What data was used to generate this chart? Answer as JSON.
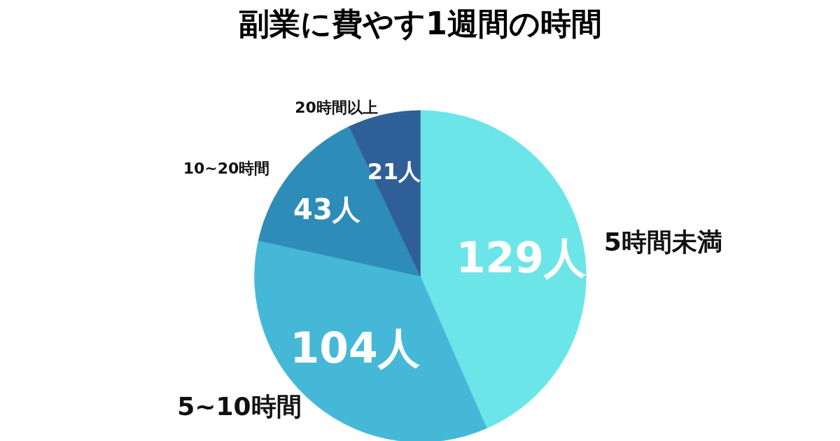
{
  "chart_data": {
    "type": "pie",
    "title": "副業に費やす1週間の時間",
    "categories": [
      "5時間未満",
      "5~10時間",
      "10~20時間",
      "20時間以上"
    ],
    "values": [
      129,
      104,
      43,
      21
    ],
    "colors": [
      "#6ce5e8",
      "#45b8d8",
      "#2e8cb8",
      "#2e5f96"
    ],
    "value_labels": [
      "129人",
      "104人",
      "43人",
      "21人"
    ]
  }
}
